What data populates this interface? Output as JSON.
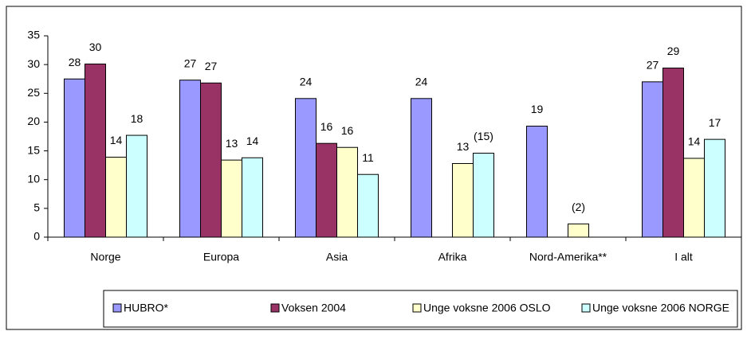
{
  "chart_data": {
    "type": "bar",
    "categories": [
      "Norge",
      "Europa",
      "Asia",
      "Afrika",
      "Nord-Amerika**",
      "I alt"
    ],
    "series": [
      {
        "name": "HUBRO*",
        "color": "#9999ff",
        "values": [
          27.5,
          27.3,
          24.1,
          24.1,
          19.3,
          27.0
        ],
        "value_labels": [
          "28",
          "27",
          "24",
          "24",
          "19",
          "27"
        ]
      },
      {
        "name": "Voksen 2004",
        "color": "#993366",
        "values": [
          30.1,
          26.8,
          16.3,
          null,
          null,
          29.4
        ],
        "value_labels": [
          "30",
          "27",
          "16",
          null,
          null,
          "29"
        ]
      },
      {
        "name": "Unge voksne 2006 OSLO",
        "color": "#ffffcc",
        "values": [
          13.9,
          13.4,
          15.6,
          12.8,
          2.3,
          13.7
        ],
        "value_labels": [
          "14",
          "13",
          "16",
          "13",
          "(2)",
          "14"
        ]
      },
      {
        "name": "Unge voksne 2006 NORGE",
        "color": "#ccffff",
        "values": [
          17.7,
          13.8,
          10.9,
          14.6,
          null,
          17.0
        ],
        "value_labels": [
          "18",
          "14",
          "11",
          "(15)",
          null,
          "17"
        ]
      }
    ],
    "ylim": [
      0,
      35
    ],
    "yticks": [
      0,
      5,
      10,
      15,
      20,
      25,
      30,
      35
    ],
    "grid": false,
    "legend": "bottom"
  }
}
